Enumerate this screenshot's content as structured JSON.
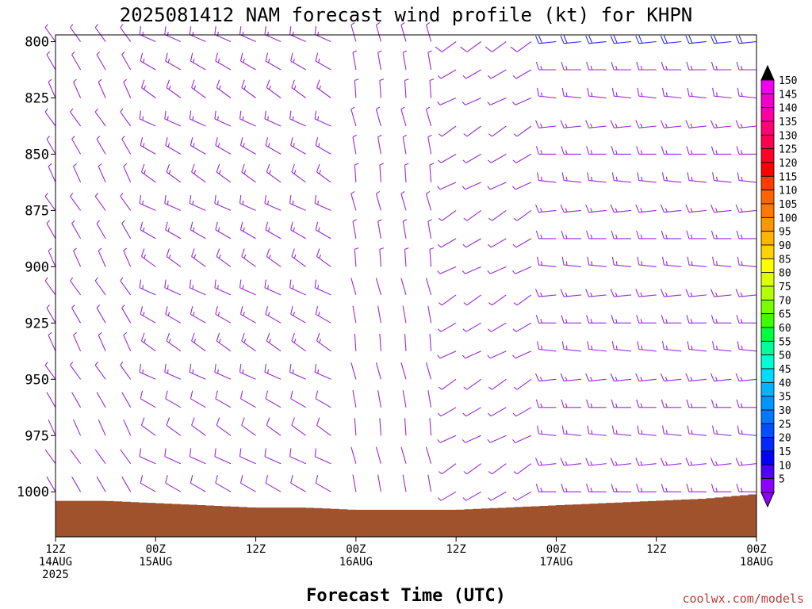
{
  "chart_data": {
    "type": "wind-barb-time-height",
    "title": "2025081412 NAM forecast wind profile (kt) for KHPN",
    "xlabel": "Forecast Time (UTC)",
    "credit": "coolwx.com/models",
    "y_axis": {
      "unit": "hPa",
      "inverted": true,
      "range": [
        797,
        1020
      ],
      "ticks": [
        "800",
        "825",
        "850",
        "875",
        "900",
        "925",
        "950",
        "975",
        "1000"
      ]
    },
    "x_axis": {
      "range_hours": [
        0,
        84
      ],
      "ticks": [
        {
          "hour": 0,
          "lines": [
            "12Z",
            "14AUG",
            "2025"
          ]
        },
        {
          "hour": 12,
          "lines": [
            "00Z",
            "15AUG"
          ]
        },
        {
          "hour": 24,
          "lines": [
            "12Z"
          ]
        },
        {
          "hour": 36,
          "lines": [
            "00Z",
            "16AUG"
          ]
        },
        {
          "hour": 48,
          "lines": [
            "12Z"
          ]
        },
        {
          "hour": 60,
          "lines": [
            "00Z",
            "17AUG"
          ]
        },
        {
          "hour": 72,
          "lines": [
            "12Z"
          ]
        },
        {
          "hour": 84,
          "lines": [
            "00Z",
            "18AUG"
          ]
        }
      ]
    },
    "grid": false,
    "barb_time_step_hours": 3,
    "barb_levels_hpa": [
      800,
      812.5,
      825,
      837.5,
      850,
      862.5,
      875,
      887.5,
      900,
      912.5,
      925,
      937.5,
      950,
      962.5,
      975,
      987.5,
      1000
    ],
    "wind_regimes": [
      {
        "hours": [
          0,
          9
        ],
        "direction_deg": 330,
        "speed_kt": 8
      },
      {
        "hours": [
          12,
          33
        ],
        "direction_deg": 300,
        "speed_kt": 18
      },
      {
        "hours": [
          36,
          45
        ],
        "direction_deg": 350,
        "speed_kt": 7
      },
      {
        "hours": [
          48,
          57
        ],
        "direction_deg": 240,
        "speed_kt": 10
      },
      {
        "hours": [
          60,
          84
        ],
        "direction_deg": 270,
        "speed_kt": 20
      }
    ],
    "surface_pressure": {
      "color": "#a0522d",
      "hours": [
        0,
        6,
        12,
        18,
        24,
        30,
        36,
        42,
        48,
        54,
        60,
        66,
        72,
        78,
        84
      ],
      "hpa": [
        1004,
        1004,
        1005,
        1006,
        1007,
        1007,
        1008,
        1008,
        1008,
        1007,
        1006,
        1005,
        1004,
        1003,
        1001
      ]
    },
    "colorbar": {
      "label_values": [
        "150",
        "145",
        "140",
        "135",
        "130",
        "125",
        "120",
        "115",
        "110",
        "105",
        "100",
        "95",
        "90",
        "85",
        "80",
        "75",
        "70",
        "65",
        "60",
        "55",
        "50",
        "45",
        "40",
        "35",
        "30",
        "25",
        "20",
        "15",
        "10",
        "5"
      ],
      "colors": [
        "#f000f0",
        "#f000c8",
        "#ff00a0",
        "#ff0078",
        "#ff0050",
        "#ff0028",
        "#ff0000",
        "#ff3c00",
        "#ff6400",
        "#ff7800",
        "#ff9600",
        "#ffb400",
        "#ffd200",
        "#ffff00",
        "#dcff00",
        "#b4ff00",
        "#78ff00",
        "#3cff00",
        "#00ff3c",
        "#00ff96",
        "#00ffd2",
        "#00dcff",
        "#00b4ff",
        "#0096ff",
        "#0078ff",
        "#0050ff",
        "#0028ff",
        "#0000ff",
        "#5000ff",
        "#8c00ff"
      ],
      "top_arrow_color": "#000000",
      "bottom_arrow_color": "#8c00ff"
    }
  }
}
